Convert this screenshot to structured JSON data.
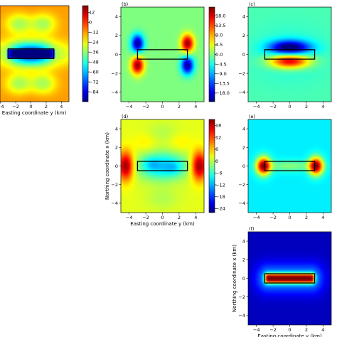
{
  "chart_data": [
    {
      "type": "heatmap",
      "panel_label": "",
      "field": "a",
      "xlabel": "Easting coordinate y (km)",
      "ylabel": "",
      "xlim": [
        -5,
        5
      ],
      "ylim": [
        -5,
        5
      ],
      "xticks": [
        "−4",
        "−2",
        "0",
        "2",
        "4"
      ],
      "yticks": [],
      "source_box": {
        "x": [
          -3,
          3
        ],
        "y": [
          -0.5,
          0.5
        ]
      },
      "colorbar": {
        "min": -96,
        "max": 20,
        "ticks": [
          "12",
          "0",
          "−12",
          "−24",
          "−36",
          "−48",
          "−60",
          "−72",
          "−84"
        ]
      }
    },
    {
      "type": "heatmap",
      "panel_label": "(b)",
      "field": "b",
      "xlabel": "",
      "ylabel": "",
      "xlim": [
        -5,
        5
      ],
      "ylim": [
        -5,
        5
      ],
      "xticks": [
        "−4",
        "−2",
        "0",
        "2",
        "4"
      ],
      "yticks": [
        "4",
        "2",
        "0",
        "−2",
        "−4"
      ],
      "source_box": {
        "x": [
          -3,
          3
        ],
        "y": [
          -0.5,
          0.5
        ]
      },
      "colorbar": {
        "min": -22,
        "max": 22,
        "ticks": [
          "18.0",
          "13.5",
          "9.0",
          "4.5",
          "0.0",
          "−4.5",
          "−9.0",
          "−13.5",
          "−18.0"
        ]
      }
    },
    {
      "type": "heatmap",
      "panel_label": "(c)",
      "field": "c",
      "xlabel": "",
      "ylabel": "",
      "xlim": [
        -5,
        5
      ],
      "ylim": [
        -5,
        5
      ],
      "xticks": [
        "−4",
        "−2",
        "0",
        "2",
        "4"
      ],
      "yticks": [
        "4",
        "2",
        "0",
        "−2",
        "−4"
      ],
      "source_box": {
        "x": [
          -3,
          3
        ],
        "y": [
          -0.5,
          0.5
        ]
      }
    },
    {
      "type": "heatmap",
      "panel_label": "(d)",
      "field": "d",
      "xlabel": "Easting coordinate y (km)",
      "ylabel": "Northing coordinate x (km)",
      "xlim": [
        -5,
        5
      ],
      "ylim": [
        -5,
        5
      ],
      "xticks": [
        "−4",
        "−2",
        "0",
        "2",
        "4"
      ],
      "yticks": [
        "4",
        "2",
        "0",
        "−2",
        "−4"
      ],
      "source_box": {
        "x": [
          -3,
          3
        ],
        "y": [
          -0.5,
          0.5
        ]
      },
      "colorbar": {
        "min": -26,
        "max": 21,
        "ticks": [
          "18",
          "12",
          "6",
          "0",
          "−6",
          "−12",
          "−18",
          "−24"
        ]
      }
    },
    {
      "type": "heatmap",
      "panel_label": "(e)",
      "field": "e",
      "xlabel": "",
      "ylabel": "",
      "xlim": [
        -5,
        5
      ],
      "ylim": [
        -5,
        5
      ],
      "xticks": [
        "−4",
        "−2",
        "0",
        "2",
        "4"
      ],
      "yticks": [
        "4",
        "2",
        "0",
        "−2",
        "−4"
      ],
      "source_box": {
        "x": [
          -3,
          3
        ],
        "y": [
          -0.5,
          0.5
        ]
      }
    },
    {
      "type": "heatmap",
      "panel_label": "(f)",
      "field": "f",
      "xlabel": "Easting coordinate y (km)",
      "ylabel": "Northing coordinate x (km)",
      "xlim": [
        -5,
        5
      ],
      "ylim": [
        -5,
        5
      ],
      "xticks": [
        "−4",
        "−2",
        "0",
        "2",
        "4"
      ],
      "yticks": [
        "4",
        "2",
        "0",
        "−2",
        "−4"
      ],
      "source_box": {
        "x": [
          -3,
          3
        ],
        "y": [
          -0.5,
          0.5
        ]
      }
    }
  ]
}
